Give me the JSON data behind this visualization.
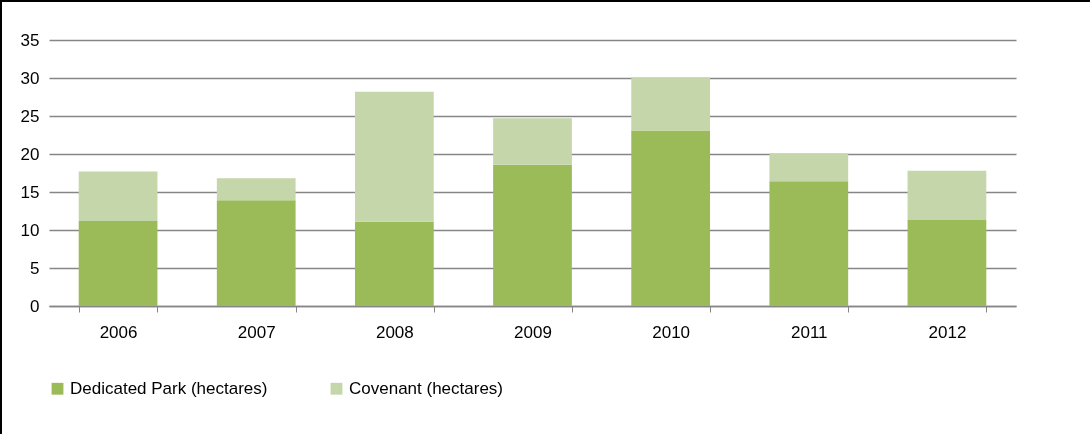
{
  "chart_data": {
    "type": "bar",
    "stacked": true,
    "categories": [
      "2006",
      "2007",
      "2008",
      "2009",
      "2010",
      "2011",
      "2012"
    ],
    "series": [
      {
        "name": "Dedicated Park (hectares)",
        "color": "#9bbb59",
        "values": [
          11.2,
          13.9,
          11.1,
          18.6,
          23.1,
          16.4,
          11.3
        ]
      },
      {
        "name": "Covenant (hectares)",
        "color": "#c4d6aa",
        "values": [
          6.5,
          2.9,
          17.1,
          6.1,
          7.0,
          3.7,
          6.5
        ]
      }
    ],
    "ylim": [
      0,
      35
    ],
    "yticks": [
      0,
      5,
      10,
      15,
      20,
      25,
      30,
      35
    ],
    "grid": "y",
    "legend": "bottom"
  }
}
